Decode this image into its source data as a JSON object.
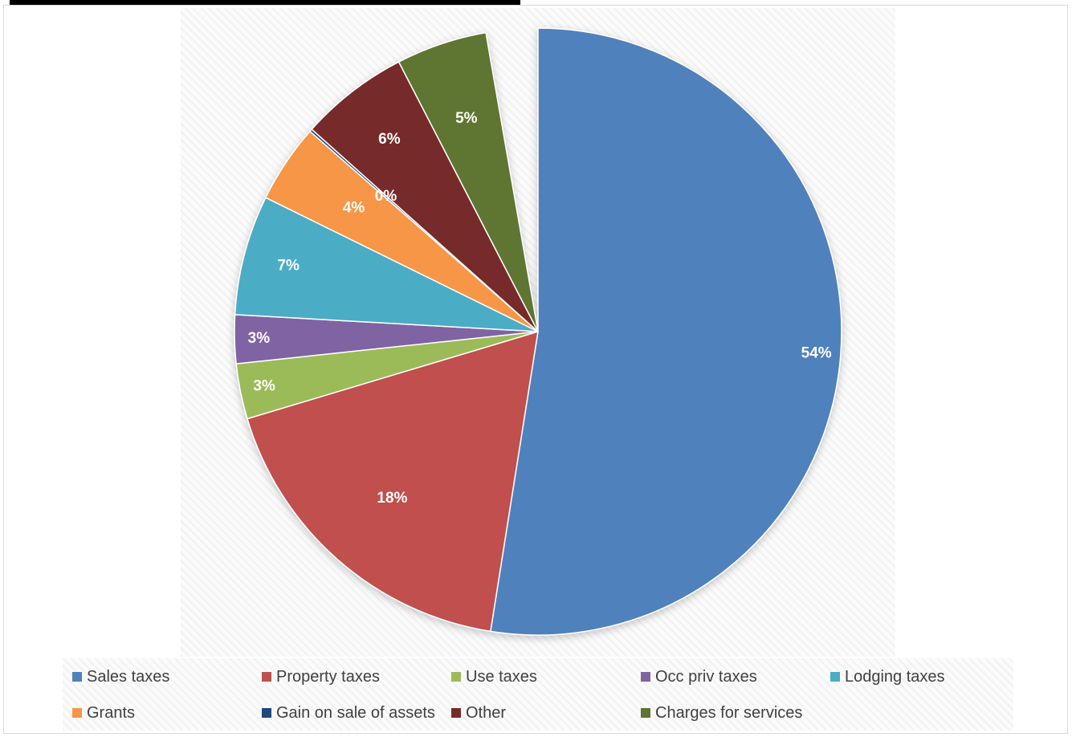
{
  "chart_data": {
    "type": "pie",
    "categories": [
      "Sales taxes",
      "Property taxes",
      "Use taxes",
      "Occ priv taxes",
      "Lodging taxes",
      "Grants",
      "Gain on sale of assets",
      "Other",
      "Charges for services"
    ],
    "values": [
      54,
      18,
      3,
      3,
      7,
      4,
      0,
      6,
      5
    ],
    "labels": [
      "54%",
      "18%",
      "3%",
      "3%",
      "7%",
      "4%",
      "0%",
      "6%",
      "5%"
    ],
    "colors": [
      "#4f81bd",
      "#c0504d",
      "#9bbb59",
      "#8064a2",
      "#4bacc6",
      "#f79646",
      "#1f497d",
      "#772c2a",
      "#5f7530"
    ],
    "legend_position": "bottom"
  }
}
